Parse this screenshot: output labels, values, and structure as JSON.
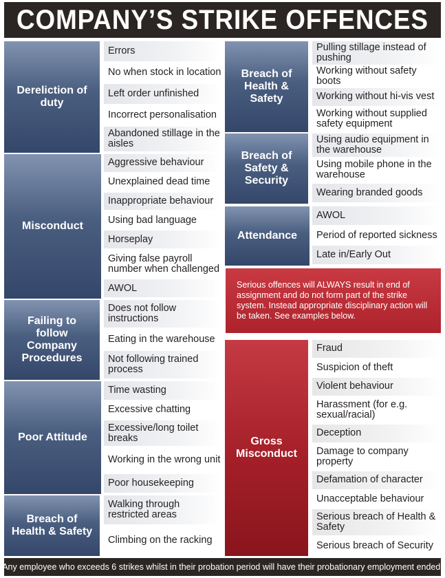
{
  "title": "COMPANY’S STRIKE OFFENCES",
  "left_groups": [
    {
      "category": "Dereliction of duty",
      "items": [
        "Errors",
        "No when stock in location",
        "Left order unfinished",
        "Incorrect personalisation",
        "Abandoned stillage in the aisles"
      ]
    },
    {
      "category": "Misconduct",
      "items": [
        "Aggressive behaviour",
        "Unexplained dead time",
        "Inappropriate behaviour",
        "Using bad language",
        "Horseplay",
        "Giving false payroll number when challenged",
        "AWOL"
      ]
    },
    {
      "category": "Failing to follow Company Procedures",
      "items": [
        "Does not follow instructions",
        "Eating in the warehouse",
        "Not following trained process"
      ]
    },
    {
      "category": "Poor Attitude",
      "items": [
        "Time wasting",
        "Excessive chatting",
        "Excessive/long toilet breaks",
        "Working in the wrong unit",
        "Poor housekeeping"
      ]
    },
    {
      "category": "Breach of Health & Safety",
      "items": [
        "Walking through restricted areas",
        "Climbing on the racking"
      ]
    }
  ],
  "right_groups": [
    {
      "category": "Breach of Health & Safety",
      "items": [
        "Pulling stillage instead of pushing",
        "Working without safety boots",
        "Working without hi-vis vest",
        "Working without supplied safety equipment"
      ]
    },
    {
      "category": "Breach of Safety & Security",
      "items": [
        "Using audio equipment in the warehouse",
        "Using mobile phone in the warehouse",
        "Wearing branded goods"
      ]
    },
    {
      "category": "Attendance",
      "items": [
        "AWOL",
        "Period of reported sickness",
        "Late in/Early Out"
      ]
    }
  ],
  "notice": "Serious offences will ALWAYS result in end of assignment and do not form part of the strike system. Instead appropriate disciplinary action will be taken. See examples below.",
  "gross": {
    "category": "Gross Misconduct",
    "items": [
      "Fraud",
      "Suspicion of theft",
      "Violent behaviour",
      "Harassment (for e.g. sexual/racial)",
      "Deception",
      "Damage to company property",
      "Defamation of character",
      "Unacceptable behaviour",
      "Serious breach of Health & Safety",
      "Serious breach of Security"
    ]
  },
  "footer": "Any employee who exceeds 6 strikes whilst in their probation period will have their probationary employment ended."
}
